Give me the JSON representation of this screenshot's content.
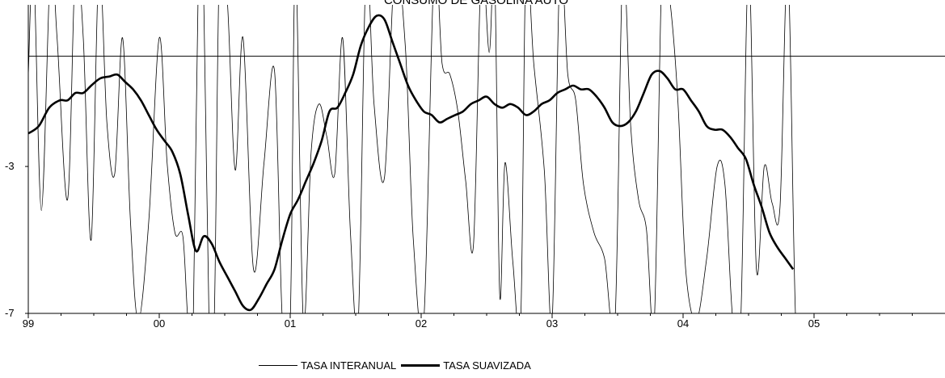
{
  "chart_data": {
    "type": "line",
    "title": "CONSUMO DE GASOLINA AUTO",
    "xlabel": "",
    "ylabel": "",
    "x_tick_labels": [
      "99",
      "00",
      "01",
      "02",
      "03",
      "04",
      "05"
    ],
    "y_tick_labels": [
      "-3",
      "-7"
    ],
    "xlim": [
      1999.0,
      2006.0
    ],
    "ylim": [
      -7,
      1.4
    ],
    "reference_line_y": 0,
    "legend_position": "bottom-center",
    "series": [
      {
        "name": "TASA INTERANUAL",
        "line": "thin",
        "x": [
          1999.0,
          1999.04,
          1999.1,
          1999.17,
          1999.22,
          1999.3,
          1999.36,
          1999.42,
          1999.48,
          1999.54,
          1999.6,
          1999.66,
          1999.72,
          1999.78,
          1999.84,
          1999.92,
          2000.0,
          2000.06,
          2000.12,
          2000.18,
          2000.22,
          2000.26,
          2000.3,
          2000.34,
          2000.38,
          2000.42,
          2000.46,
          2000.52,
          2000.58,
          2000.64,
          2000.72,
          2000.8,
          2000.88,
          2000.94,
          2001.0,
          2001.04,
          2001.1,
          2001.16,
          2001.22,
          2001.28,
          2001.34,
          2001.4,
          2001.46,
          2001.52,
          2001.58,
          2001.64,
          2001.72,
          2001.8,
          2001.88,
          2001.94,
          2002.02,
          2002.1,
          2002.16,
          2002.22,
          2002.28,
          2002.34,
          2002.4,
          2002.46,
          2002.52,
          2002.56,
          2002.6,
          2002.64,
          2002.7,
          2002.76,
          2002.8,
          2002.86,
          2002.94,
          2003.0,
          2003.06,
          2003.12,
          2003.18,
          2003.24,
          2003.32,
          2003.4,
          2003.48,
          2003.54,
          2003.6,
          2003.66,
          2003.72,
          2003.78,
          2003.84,
          2003.9,
          2003.96,
          2004.02,
          2004.1,
          2004.18,
          2004.26,
          2004.32,
          2004.38,
          2004.44,
          2004.5,
          2004.56,
          2004.62,
          2004.68,
          2004.74,
          2004.8,
          2004.86,
          2004.92
        ],
        "values": [
          -0.5,
          2.5,
          -4.2,
          2.5,
          0.5,
          -3.9,
          2.5,
          0.5,
          -5.0,
          2.5,
          -1.8,
          -3.2,
          0.5,
          -4.5,
          -7.2,
          -4.5,
          0.5,
          -2.9,
          -4.8,
          -4.9,
          -7.2,
          -7.2,
          2.5,
          1.5,
          -7.2,
          -7.2,
          2.5,
          1.5,
          -3.1,
          0.5,
          -5.8,
          -2.9,
          -0.4,
          -7.2,
          -7.2,
          2.5,
          -7.2,
          -2.6,
          -1.3,
          -2.2,
          -3.2,
          0.5,
          -4.8,
          -7.2,
          2.5,
          -1.3,
          -3.3,
          2.5,
          0.2,
          -5.0,
          -7.2,
          2.5,
          -0.2,
          -0.5,
          -1.5,
          -3.4,
          -5.1,
          2.5,
          0.1,
          2.5,
          -6.5,
          -2.9,
          -5.6,
          -7.2,
          2.5,
          -0.2,
          -3.1,
          -7.2,
          2.5,
          -0.5,
          -1.2,
          -3.5,
          -4.8,
          -5.5,
          -7.2,
          2.5,
          -1.9,
          -3.9,
          -4.7,
          -7.2,
          2.5,
          1.5,
          -1.2,
          -5.8,
          -7.2,
          -5.5,
          -3.0,
          -3.5,
          -7.2,
          -7.2,
          2.5,
          -5.8,
          -3.0,
          -4.0,
          -4.1,
          2.5,
          -7.2,
          -7.2
        ]
      },
      {
        "name": "TASA SUAVIZADA",
        "line": "thick",
        "x": [
          1999.0,
          1999.08,
          1999.16,
          1999.24,
          1999.3,
          1999.36,
          1999.42,
          1999.48,
          1999.55,
          1999.62,
          1999.68,
          1999.74,
          1999.8,
          1999.86,
          1999.92,
          1999.98,
          2000.04,
          2000.1,
          2000.16,
          2000.22,
          2000.28,
          2000.34,
          2000.4,
          2000.46,
          2000.52,
          2000.58,
          2000.64,
          2000.7,
          2000.76,
          2000.82,
          2000.88,
          2000.94,
          2001.0,
          2001.06,
          2001.12,
          2001.18,
          2001.24,
          2001.3,
          2001.36,
          2001.42,
          2001.48,
          2001.54,
          2001.6,
          2001.66,
          2001.72,
          2001.78,
          2001.84,
          2001.9,
          2001.96,
          2002.02,
          2002.08,
          2002.14,
          2002.2,
          2002.26,
          2002.32,
          2002.38,
          2002.44,
          2002.5,
          2002.56,
          2002.62,
          2002.68,
          2002.74,
          2002.8,
          2002.86,
          2002.92,
          2002.98,
          2003.04,
          2003.1,
          2003.16,
          2003.22,
          2003.28,
          2003.34,
          2003.4,
          2003.46,
          2003.52,
          2003.58,
          2003.64,
          2003.7,
          2003.76,
          2003.82,
          2003.88,
          2003.94,
          2004.0,
          2004.06,
          2004.12,
          2004.18,
          2004.24,
          2004.3,
          2004.36,
          2004.42,
          2004.48,
          2004.54,
          2004.6,
          2004.66,
          2004.72,
          2004.78,
          2004.84
        ],
        "values": [
          -2.1,
          -1.9,
          -1.4,
          -1.2,
          -1.2,
          -1.0,
          -1.0,
          -0.8,
          -0.6,
          -0.55,
          -0.5,
          -0.7,
          -0.9,
          -1.2,
          -1.6,
          -2.0,
          -2.3,
          -2.6,
          -3.2,
          -4.3,
          -5.3,
          -4.9,
          -5.1,
          -5.6,
          -6.0,
          -6.4,
          -6.8,
          -6.9,
          -6.6,
          -6.2,
          -5.8,
          -5.0,
          -4.3,
          -3.9,
          -3.4,
          -2.9,
          -2.3,
          -1.5,
          -1.4,
          -1.0,
          -0.5,
          0.3,
          0.8,
          1.1,
          1.0,
          0.4,
          -0.2,
          -0.8,
          -1.2,
          -1.5,
          -1.6,
          -1.8,
          -1.7,
          -1.6,
          -1.5,
          -1.3,
          -1.2,
          -1.1,
          -1.3,
          -1.4,
          -1.3,
          -1.4,
          -1.6,
          -1.5,
          -1.3,
          -1.2,
          -1.0,
          -0.9,
          -0.8,
          -0.9,
          -0.9,
          -1.1,
          -1.4,
          -1.8,
          -1.9,
          -1.8,
          -1.5,
          -1.0,
          -0.5,
          -0.4,
          -0.6,
          -0.9,
          -0.9,
          -1.2,
          -1.5,
          -1.9,
          -2.0,
          -2.0,
          -2.2,
          -2.5,
          -2.8,
          -3.5,
          -4.1,
          -4.8,
          -5.2,
          -5.5,
          -5.8
        ]
      }
    ]
  }
}
